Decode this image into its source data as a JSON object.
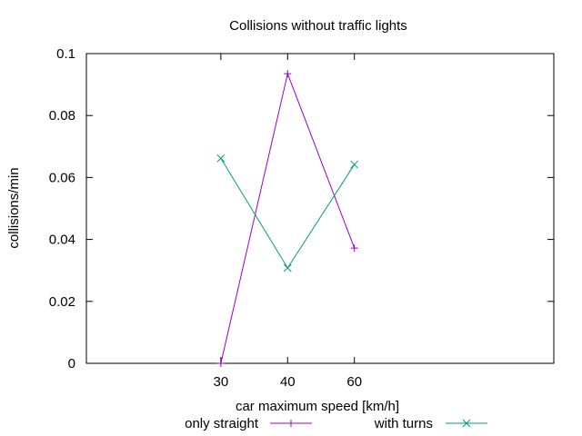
{
  "chart_data": {
    "type": "line",
    "title": "Collisions without traffic lights",
    "xlabel": "car maximum speed [km/h]",
    "ylabel": "collisions/min",
    "xlim": [
      20,
      70
    ],
    "ylim": [
      0,
      0.1
    ],
    "x_ticks": [
      30,
      40,
      60
    ],
    "x_tick_labels": [
      "30",
      "40",
      "60"
    ],
    "y_ticks": [
      0,
      0.02,
      0.04,
      0.06,
      0.08,
      0.1
    ],
    "y_tick_labels": [
      "0",
      "0.02",
      "0.04",
      "0.06",
      "0.08",
      "0.1"
    ],
    "grid": false,
    "legend_position": "bottom",
    "series": [
      {
        "name": "only straight",
        "color": "#9400d3",
        "marker": "plus",
        "points": [
          {
            "x": 30,
            "x_pos": 3,
            "y": 0.0
          },
          {
            "x": 40,
            "x_pos": 4,
            "y": 0.0935
          },
          {
            "x": 60,
            "x_pos": 5,
            "y": 0.0372
          }
        ]
      },
      {
        "name": "with turns",
        "color": "#009e73",
        "marker": "cross",
        "points": [
          {
            "x": 30,
            "x_pos": 3,
            "y": 0.0662
          },
          {
            "x": 40,
            "x_pos": 4,
            "y": 0.0308
          },
          {
            "x": 60,
            "x_pos": 5,
            "y": 0.0642
          }
        ]
      }
    ]
  }
}
